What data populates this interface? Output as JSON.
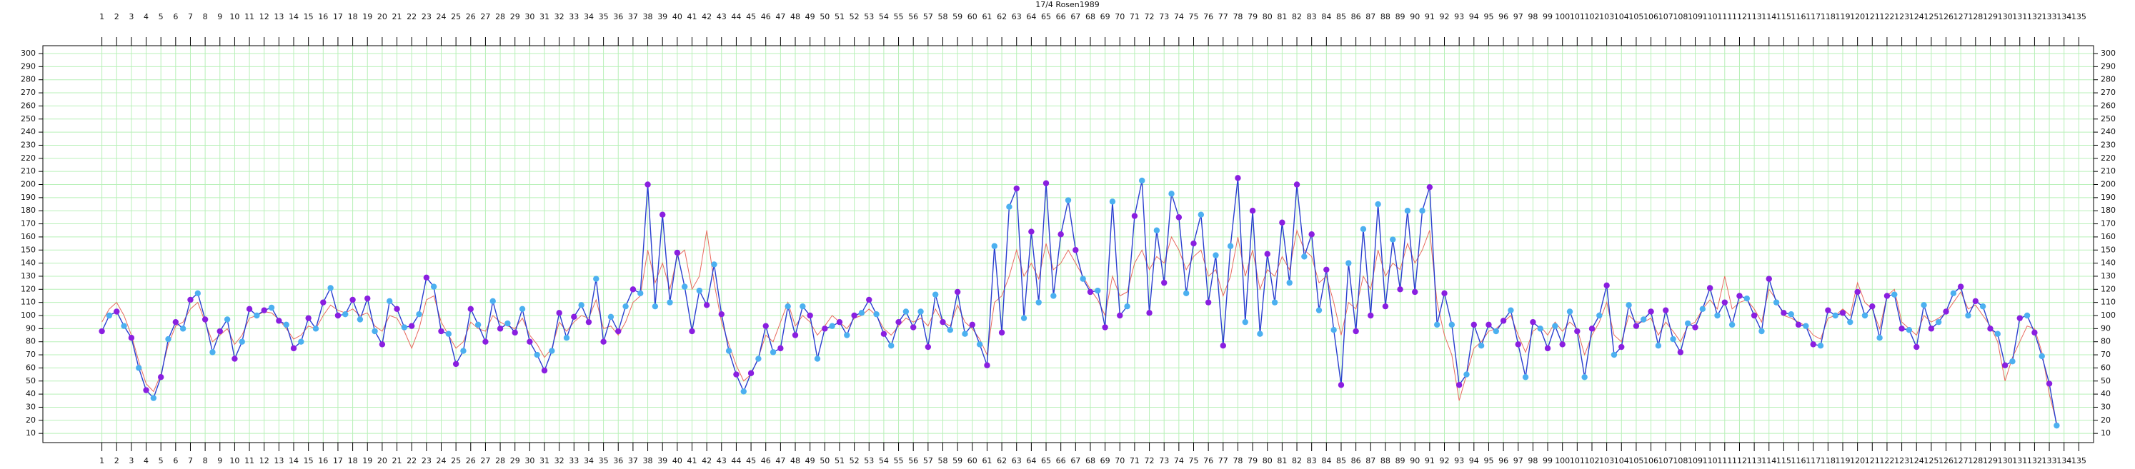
{
  "chart_data": {
    "type": "line",
    "title": "17/4 Rosen1989",
    "x": [
      1,
      1.5,
      2,
      2.5,
      3,
      3.5,
      4,
      4.5,
      5,
      5.5,
      6,
      6.5,
      7,
      7.5,
      8,
      8.5,
      9,
      9.5,
      10,
      10.5,
      11,
      11.5,
      12,
      12.5,
      13,
      13.5,
      14,
      14.5,
      15,
      15.5,
      16,
      16.5,
      17,
      17.5,
      18,
      18.5,
      19,
      19.5,
      20,
      20.5,
      21,
      21.5,
      22,
      22.5,
      23,
      23.5,
      24,
      24.5,
      25,
      25.5,
      26,
      26.5,
      27,
      27.5,
      28,
      28.5,
      29,
      29.5,
      30,
      30.5,
      31,
      31.5,
      32,
      32.5,
      33,
      33.5,
      34,
      34.5,
      35,
      35.5,
      36,
      36.5,
      37,
      37.5,
      38,
      38.5,
      39,
      39.5,
      40,
      40.5,
      41,
      41.5,
      42,
      42.5,
      43,
      43.5,
      44,
      44.5,
      45,
      45.5,
      46,
      46.5,
      47,
      47.5,
      48,
      48.5,
      49,
      49.5,
      50,
      50.5,
      51,
      51.5,
      52,
      52.5,
      53,
      53.5,
      54,
      54.5,
      55,
      55.5,
      56,
      56.5,
      57,
      57.5,
      58,
      58.5,
      59,
      59.5,
      60,
      60.5,
      61,
      61.5,
      62,
      62.5,
      63,
      63.5,
      64,
      64.5,
      65,
      65.5,
      66,
      66.5,
      67,
      67.5,
      68,
      68.5,
      69,
      69.5,
      70,
      70.5,
      71,
      71.5,
      72,
      72.5,
      73,
      73.5,
      74,
      74.5,
      75,
      75.5,
      76,
      76.5,
      77,
      77.5,
      78,
      78.5,
      79,
      79.5,
      80,
      80.5,
      81,
      81.5,
      82,
      82.5,
      83,
      83.5,
      84,
      84.5,
      85,
      85.5,
      86,
      86.5,
      87,
      87.5,
      88,
      88.5,
      89,
      89.5,
      90,
      90.5,
      91,
      91.5,
      92,
      92.5,
      93,
      93.5,
      94,
      94.5,
      95,
      95.5,
      96,
      96.5,
      97,
      97.5,
      98,
      98.5,
      99,
      99.5,
      100,
      100.5,
      101,
      101.5,
      102,
      102.5,
      103,
      103.5,
      104,
      104.5,
      105,
      105.5,
      106,
      106.5,
      107,
      107.5,
      108,
      108.5,
      109,
      109.5,
      110,
      110.5,
      111,
      111.5,
      112,
      112.5,
      113,
      113.5,
      114,
      114.5,
      115,
      115.5,
      116,
      116.5,
      117,
      117.5,
      118,
      118.5,
      119,
      119.5,
      120,
      120.5,
      121,
      121.5,
      122,
      122.5,
      123,
      123.5,
      124,
      124.5,
      125,
      125.5,
      126,
      126.5,
      127,
      127.5,
      128,
      128.5,
      129,
      129.5,
      130,
      130.5,
      131,
      131.5,
      132,
      132.5,
      133,
      133.5
    ],
    "series": [
      {
        "color": "#2a3fd0",
        "marker_colors": [
          "#8a1fe0",
          "#4cb0f0"
        ],
        "values": [
          88,
          100,
          103,
          92,
          83,
          60,
          43,
          37,
          53,
          82,
          95,
          90,
          112,
          117,
          97,
          72,
          88,
          97,
          67,
          80,
          105,
          100,
          104,
          106,
          96,
          93,
          75,
          80,
          98,
          90,
          110,
          121,
          100,
          101,
          112,
          97,
          113,
          88,
          78,
          111,
          105,
          91,
          92,
          101,
          129,
          122,
          88,
          86,
          63,
          73,
          105,
          93,
          80,
          111,
          90,
          94,
          87,
          105,
          80,
          70,
          58,
          73,
          102,
          83,
          99,
          108,
          95,
          128,
          80,
          99,
          88,
          107,
          120,
          117,
          200,
          107,
          177,
          110,
          148,
          122,
          88,
          119,
          108,
          139,
          101,
          73,
          55,
          42,
          56,
          67,
          92,
          72,
          75,
          107,
          85,
          107,
          100,
          67,
          90,
          92,
          95,
          85,
          100,
          102,
          112,
          101,
          86,
          77,
          95,
          103,
          91,
          103,
          76,
          116,
          95,
          89,
          118,
          86,
          93,
          78,
          62,
          153,
          87,
          183,
          197,
          98,
          164,
          110,
          201,
          115,
          162,
          188,
          150,
          128,
          118,
          119,
          91,
          187,
          100,
          107,
          176,
          203,
          102,
          165,
          125,
          193,
          175,
          117,
          155,
          177,
          110,
          146,
          77,
          153,
          205,
          95,
          180,
          86,
          147,
          110,
          171,
          125,
          200,
          145,
          162,
          104,
          135,
          89,
          47,
          140,
          88,
          166,
          100,
          185,
          107,
          158,
          120,
          180,
          118,
          180,
          198,
          93,
          117,
          93,
          47,
          55,
          93,
          77,
          93,
          88,
          96,
          104,
          78,
          53,
          95,
          90,
          75,
          92,
          78,
          103,
          88,
          53,
          90,
          100,
          123,
          70,
          76,
          108,
          92,
          97,
          103,
          77,
          104,
          82,
          72,
          94,
          91,
          105,
          121,
          100,
          110,
          93,
          115,
          113,
          100,
          88,
          128,
          110,
          102,
          101,
          93,
          92,
          78,
          77,
          104,
          100,
          102,
          95,
          118,
          100,
          107,
          83,
          115,
          116,
          90,
          89,
          76,
          108,
          90,
          95,
          103,
          117,
          122,
          100,
          111,
          107,
          90,
          86,
          62,
          65,
          98,
          100,
          87,
          69,
          48,
          16
        ]
      },
      {
        "color": "#e86a5e",
        "values": [
          95,
          105,
          110,
          100,
          85,
          65,
          48,
          42,
          55,
          78,
          92,
          95,
          105,
          110,
          95,
          80,
          85,
          90,
          78,
          85,
          98,
          100,
          103,
          102,
          97,
          90,
          82,
          85,
          92,
          90,
          100,
          108,
          104,
          102,
          105,
          100,
          102,
          92,
          88,
          100,
          98,
          88,
          75,
          90,
          112,
          115,
          95,
          85,
          75,
          80,
          95,
          90,
          88,
          100,
          95,
          92,
          90,
          98,
          85,
          78,
          68,
          75,
          95,
          88,
          95,
          100,
          98,
          112,
          90,
          92,
          85,
          95,
          110,
          115,
          150,
          125,
          140,
          120,
          145,
          150,
          120,
          130,
          165,
          125,
          95,
          78,
          62,
          50,
          55,
          68,
          85,
          80,
          95,
          110,
          92,
          100,
          95,
          85,
          92,
          100,
          95,
          90,
          98,
          100,
          105,
          100,
          90,
          85,
          92,
          98,
          95,
          98,
          92,
          105,
          95,
          92,
          108,
          95,
          90,
          82,
          70,
          110,
          115,
          130,
          150,
          130,
          140,
          128,
          155,
          135,
          140,
          150,
          140,
          130,
          120,
          112,
          100,
          130,
          115,
          118,
          140,
          150,
          135,
          145,
          140,
          160,
          150,
          135,
          145,
          150,
          130,
          135,
          115,
          130,
          160,
          130,
          150,
          120,
          135,
          130,
          145,
          135,
          165,
          150,
          145,
          125,
          130,
          110,
          85,
          110,
          105,
          130,
          120,
          150,
          130,
          140,
          135,
          155,
          140,
          150,
          165,
          110,
          85,
          70,
          35,
          55,
          75,
          80,
          88,
          90,
          95,
          100,
          85,
          72,
          88,
          92,
          85,
          95,
          88,
          95,
          90,
          70,
          85,
          95,
          110,
          85,
          80,
          100,
          95,
          95,
          98,
          85,
          95,
          88,
          80,
          92,
          95,
          105,
          112,
          105,
          130,
          105,
          110,
          112,
          105,
          95,
          120,
          112,
          100,
          98,
          95,
          92,
          85,
          82,
          98,
          100,
          105,
          100,
          125,
          110,
          105,
          90,
          115,
          120,
          95,
          90,
          85,
          100,
          95,
          98,
          102,
          110,
          118,
          105,
          108,
          100,
          92,
          80,
          50,
          68,
          80,
          92,
          90,
          72,
          40,
          18
        ]
      }
    ],
    "xlim": [
      -3,
      136
    ],
    "xticks": [
      1,
      2,
      3,
      4,
      5,
      6,
      7,
      8,
      9,
      10,
      11,
      12,
      13,
      14,
      15,
      16,
      17,
      18,
      19,
      20,
      21,
      22,
      23,
      24,
      25,
      26,
      27,
      28,
      29,
      30,
      31,
      32,
      33,
      34,
      35,
      36,
      37,
      38,
      39,
      40,
      41,
      42,
      43,
      44,
      45,
      46,
      47,
      48,
      49,
      50,
      51,
      52,
      53,
      54,
      55,
      56,
      57,
      58,
      59,
      60,
      61,
      62,
      63,
      64,
      65,
      66,
      67,
      68,
      69,
      70,
      71,
      72,
      73,
      74,
      75,
      76,
      77,
      78,
      79,
      80,
      81,
      82,
      83,
      84,
      85,
      86,
      87,
      88,
      89,
      90,
      91,
      92,
      93,
      94,
      95,
      96,
      97,
      98,
      99,
      100,
      101,
      102,
      103,
      104,
      105,
      106,
      107,
      108,
      109,
      110,
      111,
      112,
      113,
      114,
      115,
      116,
      117,
      118,
      119,
      120,
      121,
      122,
      123,
      124,
      125,
      126,
      127,
      128,
      129,
      130,
      131,
      132,
      133,
      134,
      135
    ],
    "ylim": [
      3,
      306
    ],
    "yticks": [
      10,
      20,
      30,
      40,
      50,
      60,
      70,
      80,
      90,
      100,
      110,
      120,
      130,
      140,
      150,
      160,
      170,
      180,
      190,
      200,
      210,
      220,
      230,
      240,
      250,
      260,
      270,
      280,
      290,
      300
    ],
    "grid": true,
    "grid_color": "#b8f0b8"
  }
}
